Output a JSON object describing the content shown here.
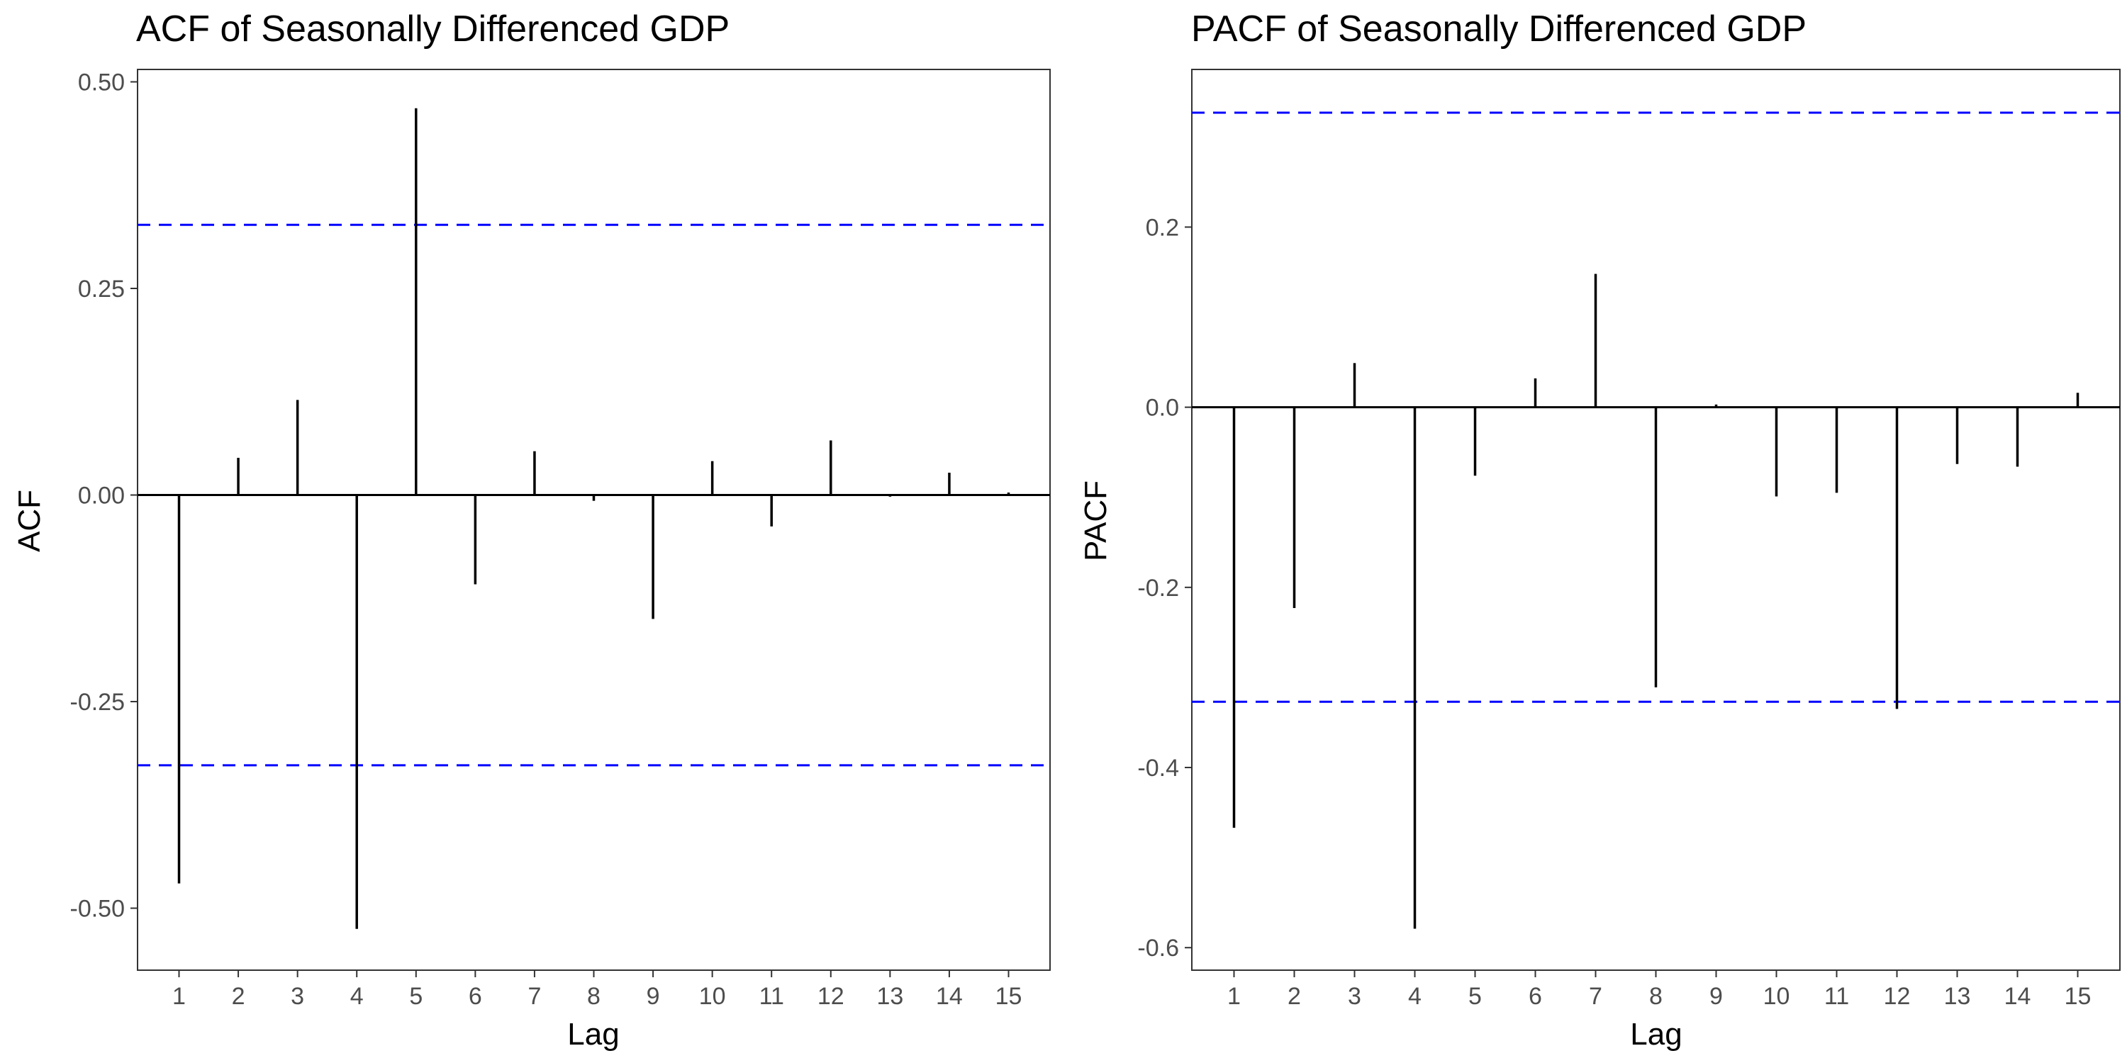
{
  "chart_data": [
    {
      "type": "bar",
      "title": "ACF of Seasonally Differenced GDP",
      "xlabel": "Lag",
      "ylabel": "ACF",
      "x": [
        1,
        2,
        3,
        4,
        5,
        6,
        7,
        8,
        9,
        10,
        11,
        12,
        13,
        14,
        15
      ],
      "x_tick_labels": [
        "1",
        "2",
        "3",
        "4",
        "5",
        "6",
        "7",
        "8",
        "9",
        "10",
        "11",
        "12",
        "13",
        "14",
        "15"
      ],
      "values": [
        -0.47,
        0.045,
        0.115,
        -0.525,
        0.468,
        -0.108,
        0.053,
        -0.007,
        -0.15,
        0.041,
        -0.038,
        0.066,
        -0.002,
        0.027,
        0.003
      ],
      "confidence_band": [
        0.327,
        -0.327
      ],
      "ylim": [
        -0.575,
        0.515
      ],
      "y_ticks": [
        0.5,
        0.25,
        0.0,
        -0.25,
        -0.5
      ],
      "y_tick_labels": [
        "0.50",
        "0.25",
        "0.00",
        "-0.25",
        "-0.50"
      ],
      "grid": false,
      "legend": "none",
      "colors": {
        "spike": "#000000",
        "band": "#0000ff",
        "frame": "#333333"
      }
    },
    {
      "type": "bar",
      "title": "PACF of Seasonally Differenced GDP",
      "xlabel": "Lag",
      "ylabel": "PACF",
      "x": [
        1,
        2,
        3,
        4,
        5,
        6,
        7,
        8,
        9,
        10,
        11,
        12,
        13,
        14,
        15
      ],
      "x_tick_labels": [
        "1",
        "2",
        "3",
        "4",
        "5",
        "6",
        "7",
        "8",
        "9",
        "10",
        "11",
        "12",
        "13",
        "14",
        "15"
      ],
      "values": [
        -0.467,
        -0.223,
        0.049,
        -0.579,
        -0.076,
        0.032,
        0.148,
        -0.311,
        0.003,
        -0.099,
        -0.095,
        -0.335,
        -0.063,
        -0.066,
        0.016
      ],
      "confidence_band": [
        0.327,
        -0.327
      ],
      "ylim": [
        -0.625,
        0.375
      ],
      "y_ticks": [
        0.2,
        0.0,
        -0.2,
        -0.4,
        -0.6
      ],
      "y_tick_labels": [
        "0.2",
        "0.0",
        "-0.2",
        "-0.4",
        "-0.6"
      ],
      "grid": false,
      "legend": "none",
      "colors": {
        "spike": "#000000",
        "band": "#0000ff",
        "frame": "#333333"
      }
    }
  ]
}
